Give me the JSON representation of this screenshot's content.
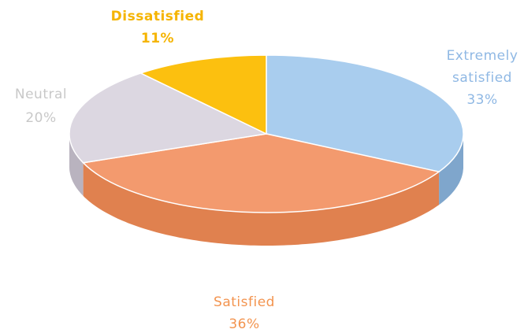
{
  "chart_data": {
    "type": "pie",
    "title": "",
    "style": "3d",
    "slices": [
      {
        "name": "Extremely satisfied",
        "name_lines": [
          "Extremely",
          "satisfied"
        ],
        "value": 33,
        "value_label": "33%",
        "color": "#a9cdee",
        "side_color": "#7fa6cc"
      },
      {
        "name": "Satisfied",
        "name_lines": [
          "Satisfied"
        ],
        "value": 36,
        "value_label": "36%",
        "color": "#f39a6e",
        "side_color": "#e0814f"
      },
      {
        "name": "Neutral",
        "name_lines": [
          "Neutral"
        ],
        "value": 20,
        "value_label": "20%",
        "color": "#dcd7e1",
        "side_color": "#b9b3bf"
      },
      {
        "name": "Dissatisfied",
        "name_lines": [
          "Dissatisfied"
        ],
        "value": 11,
        "value_label": "11%",
        "color": "#fcc00f",
        "side_color": "#d9a000"
      }
    ],
    "label_colors": {
      "Extremely satisfied": "#8fb8e4",
      "Satisfied": "#f3944f",
      "Neutral": "#c8c8c8",
      "Dissatisfied": "#f5b400"
    }
  }
}
